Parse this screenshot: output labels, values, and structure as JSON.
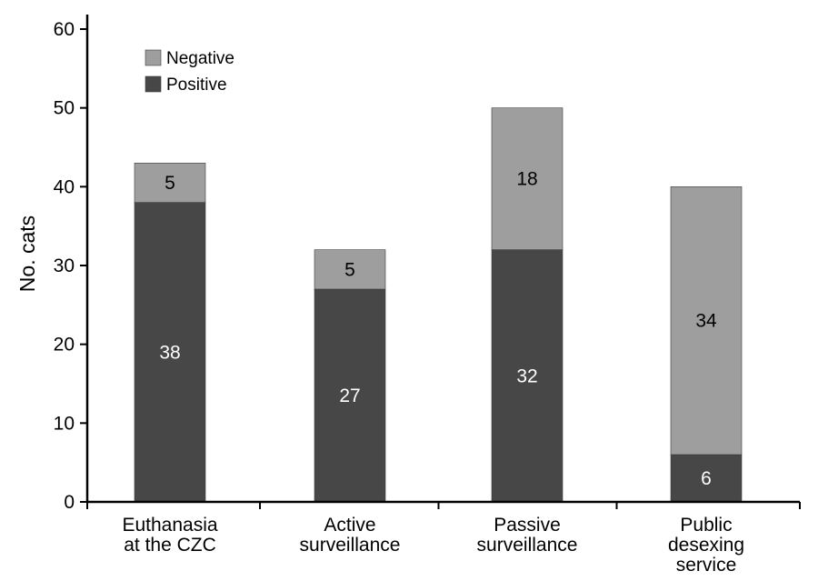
{
  "chart_data": {
    "type": "bar",
    "stacked": true,
    "title": "",
    "xlabel": "",
    "ylabel": "No. cats",
    "ylim": [
      0,
      60
    ],
    "yticks": [
      0,
      10,
      20,
      30,
      40,
      50,
      60
    ],
    "grid": false,
    "legend_position": "top-left",
    "categories": [
      [
        "Euthanasia",
        "at the CZC"
      ],
      [
        "Active",
        "surveillance"
      ],
      [
        "Passive",
        "surveillance"
      ],
      [
        "Public",
        "desexing",
        "service"
      ]
    ],
    "series": [
      {
        "name": "Positive",
        "color": "#474747",
        "label_color": "#ffffff",
        "values": [
          38,
          27,
          32,
          6
        ],
        "labels": [
          "38",
          "27",
          "32",
          "6"
        ]
      },
      {
        "name": "Negative",
        "color": "#9e9e9e",
        "label_color": "#000000",
        "values": [
          5,
          5,
          18,
          34
        ],
        "labels": [
          "5",
          "5",
          "18",
          "34"
        ]
      }
    ],
    "legend_order": [
      "Negative",
      "Positive"
    ]
  }
}
